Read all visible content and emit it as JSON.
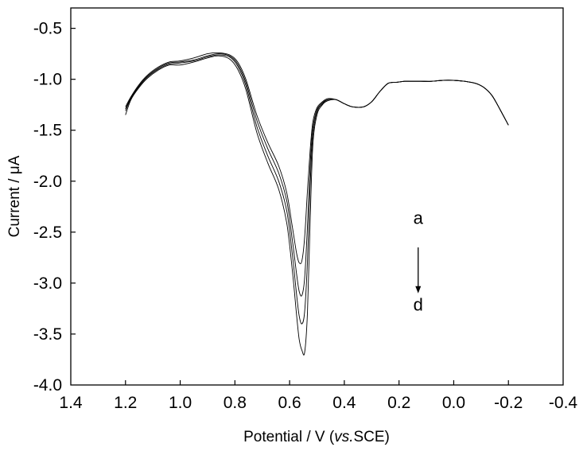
{
  "chart_data": {
    "type": "line",
    "xlabel_parts": {
      "main": "Potential / V (",
      "italic": "vs.",
      "tail": "SCE)"
    },
    "ylabel": "Current / μA",
    "xlim": [
      1.4,
      -0.4
    ],
    "ylim": [
      -4.0,
      -0.3
    ],
    "x_ticks": [
      1.4,
      1.2,
      1.0,
      0.8,
      0.6,
      0.4,
      0.2,
      0.0,
      -0.2,
      -0.4
    ],
    "x_tick_labels": [
      "1.4",
      "1.2",
      "1.0",
      "0.8",
      "0.6",
      "0.4",
      "0.2",
      "0.0",
      "-0.2",
      "-0.4"
    ],
    "y_ticks": [
      -0.5,
      -1.0,
      -1.5,
      -2.0,
      -2.5,
      -3.0,
      -3.5,
      -4.0
    ],
    "y_tick_labels": [
      "-0.5",
      "-1.0",
      "-1.5",
      "-2.0",
      "-2.5",
      "-3.0",
      "-3.5",
      "-4.0"
    ],
    "grid": false,
    "line_color": "#000000",
    "annotations": {
      "start_label": "a",
      "end_label": "d",
      "arrow_x": 0.13,
      "arrow_y_from": -2.65,
      "arrow_y_to": -3.1,
      "start_y": -2.42,
      "end_y": -3.27
    },
    "series": [
      {
        "x": [
          1.2,
          1.18,
          1.15,
          1.12,
          1.08,
          1.04,
          1.0,
          0.95,
          0.9,
          0.86,
          0.82,
          0.79,
          0.76,
          0.72,
          0.68,
          0.64,
          0.61,
          0.59,
          0.575,
          0.565,
          0.555,
          0.545,
          0.535,
          0.525,
          0.515,
          0.5,
          0.48,
          0.46,
          0.43,
          0.4,
          0.37,
          0.33,
          0.3,
          0.27,
          0.24,
          0.21,
          0.18,
          0.15,
          0.12,
          0.08,
          0.04,
          0.0,
          -0.04,
          -0.08,
          -0.11,
          -0.14,
          -0.17,
          -0.2
        ],
        "y": [
          -1.27,
          -1.17,
          -1.05,
          -0.96,
          -0.88,
          -0.83,
          -0.82,
          -0.79,
          -0.75,
          -0.74,
          -0.76,
          -0.83,
          -1.0,
          -1.35,
          -1.62,
          -1.85,
          -2.12,
          -2.45,
          -2.7,
          -2.8,
          -2.78,
          -2.55,
          -2.1,
          -1.7,
          -1.42,
          -1.28,
          -1.22,
          -1.19,
          -1.2,
          -1.24,
          -1.27,
          -1.27,
          -1.22,
          -1.12,
          -1.04,
          -1.03,
          -1.02,
          -1.02,
          -1.02,
          -1.02,
          -1.01,
          -1.01,
          -1.02,
          -1.04,
          -1.08,
          -1.16,
          -1.3,
          -1.45
        ]
      },
      {
        "x": [
          1.2,
          1.18,
          1.15,
          1.12,
          1.08,
          1.04,
          1.0,
          0.95,
          0.9,
          0.86,
          0.82,
          0.79,
          0.76,
          0.72,
          0.68,
          0.64,
          0.61,
          0.59,
          0.575,
          0.565,
          0.555,
          0.545,
          0.535,
          0.525,
          0.515,
          0.5,
          0.48,
          0.46,
          0.43,
          0.4,
          0.37,
          0.33,
          0.3,
          0.27,
          0.24,
          0.21,
          0.18,
          0.15,
          0.12,
          0.08,
          0.04,
          0.0,
          -0.04,
          -0.08,
          -0.11,
          -0.14,
          -0.17,
          -0.2
        ],
        "y": [
          -1.29,
          -1.18,
          -1.06,
          -0.97,
          -0.89,
          -0.84,
          -0.83,
          -0.81,
          -0.77,
          -0.75,
          -0.77,
          -0.85,
          -1.03,
          -1.4,
          -1.68,
          -1.92,
          -2.2,
          -2.58,
          -2.9,
          -3.08,
          -3.12,
          -2.95,
          -2.45,
          -1.85,
          -1.48,
          -1.3,
          -1.23,
          -1.2,
          -1.2,
          -1.24,
          -1.27,
          -1.27,
          -1.22,
          -1.12,
          -1.04,
          -1.03,
          -1.02,
          -1.02,
          -1.02,
          -1.02,
          -1.01,
          -1.01,
          -1.02,
          -1.04,
          -1.08,
          -1.16,
          -1.3,
          -1.45
        ]
      },
      {
        "x": [
          1.2,
          1.18,
          1.15,
          1.12,
          1.08,
          1.04,
          1.0,
          0.95,
          0.9,
          0.86,
          0.82,
          0.79,
          0.76,
          0.72,
          0.68,
          0.64,
          0.61,
          0.59,
          0.575,
          0.565,
          0.555,
          0.545,
          0.535,
          0.525,
          0.515,
          0.5,
          0.48,
          0.46,
          0.43,
          0.4,
          0.37,
          0.33,
          0.3,
          0.27,
          0.24,
          0.21,
          0.18,
          0.15,
          0.12,
          0.08,
          0.04,
          0.0,
          -0.04,
          -0.08,
          -0.11,
          -0.14,
          -0.17,
          -0.2
        ],
        "y": [
          -1.31,
          -1.19,
          -1.07,
          -0.98,
          -0.9,
          -0.85,
          -0.84,
          -0.82,
          -0.78,
          -0.76,
          -0.78,
          -0.87,
          -1.06,
          -1.46,
          -1.75,
          -2.0,
          -2.3,
          -2.72,
          -3.1,
          -3.32,
          -3.4,
          -3.28,
          -2.8,
          -2.05,
          -1.55,
          -1.32,
          -1.24,
          -1.2,
          -1.2,
          -1.24,
          -1.27,
          -1.27,
          -1.22,
          -1.12,
          -1.04,
          -1.03,
          -1.02,
          -1.02,
          -1.02,
          -1.02,
          -1.01,
          -1.01,
          -1.02,
          -1.04,
          -1.08,
          -1.16,
          -1.3,
          -1.45
        ]
      },
      {
        "x": [
          1.2,
          1.18,
          1.15,
          1.12,
          1.08,
          1.04,
          1.0,
          0.95,
          0.9,
          0.86,
          0.82,
          0.79,
          0.76,
          0.72,
          0.68,
          0.64,
          0.61,
          0.59,
          0.575,
          0.565,
          0.555,
          0.545,
          0.535,
          0.525,
          0.515,
          0.5,
          0.48,
          0.46,
          0.43,
          0.4,
          0.37,
          0.33,
          0.3,
          0.27,
          0.24,
          0.21,
          0.18,
          0.15,
          0.12,
          0.08,
          0.04,
          0.0,
          -0.04,
          -0.08,
          -0.11,
          -0.14,
          -0.17,
          -0.2
        ],
        "y": [
          -1.35,
          -1.2,
          -1.08,
          -0.99,
          -0.91,
          -0.86,
          -0.86,
          -0.83,
          -0.79,
          -0.77,
          -0.8,
          -0.9,
          -1.1,
          -1.52,
          -1.82,
          -2.08,
          -2.42,
          -2.88,
          -3.3,
          -3.55,
          -3.66,
          -3.68,
          -3.3,
          -2.4,
          -1.65,
          -1.35,
          -1.25,
          -1.21,
          -1.2,
          -1.24,
          -1.27,
          -1.27,
          -1.22,
          -1.12,
          -1.04,
          -1.03,
          -1.02,
          -1.02,
          -1.02,
          -1.02,
          -1.01,
          -1.01,
          -1.02,
          -1.04,
          -1.08,
          -1.16,
          -1.3,
          -1.45
        ]
      }
    ]
  }
}
